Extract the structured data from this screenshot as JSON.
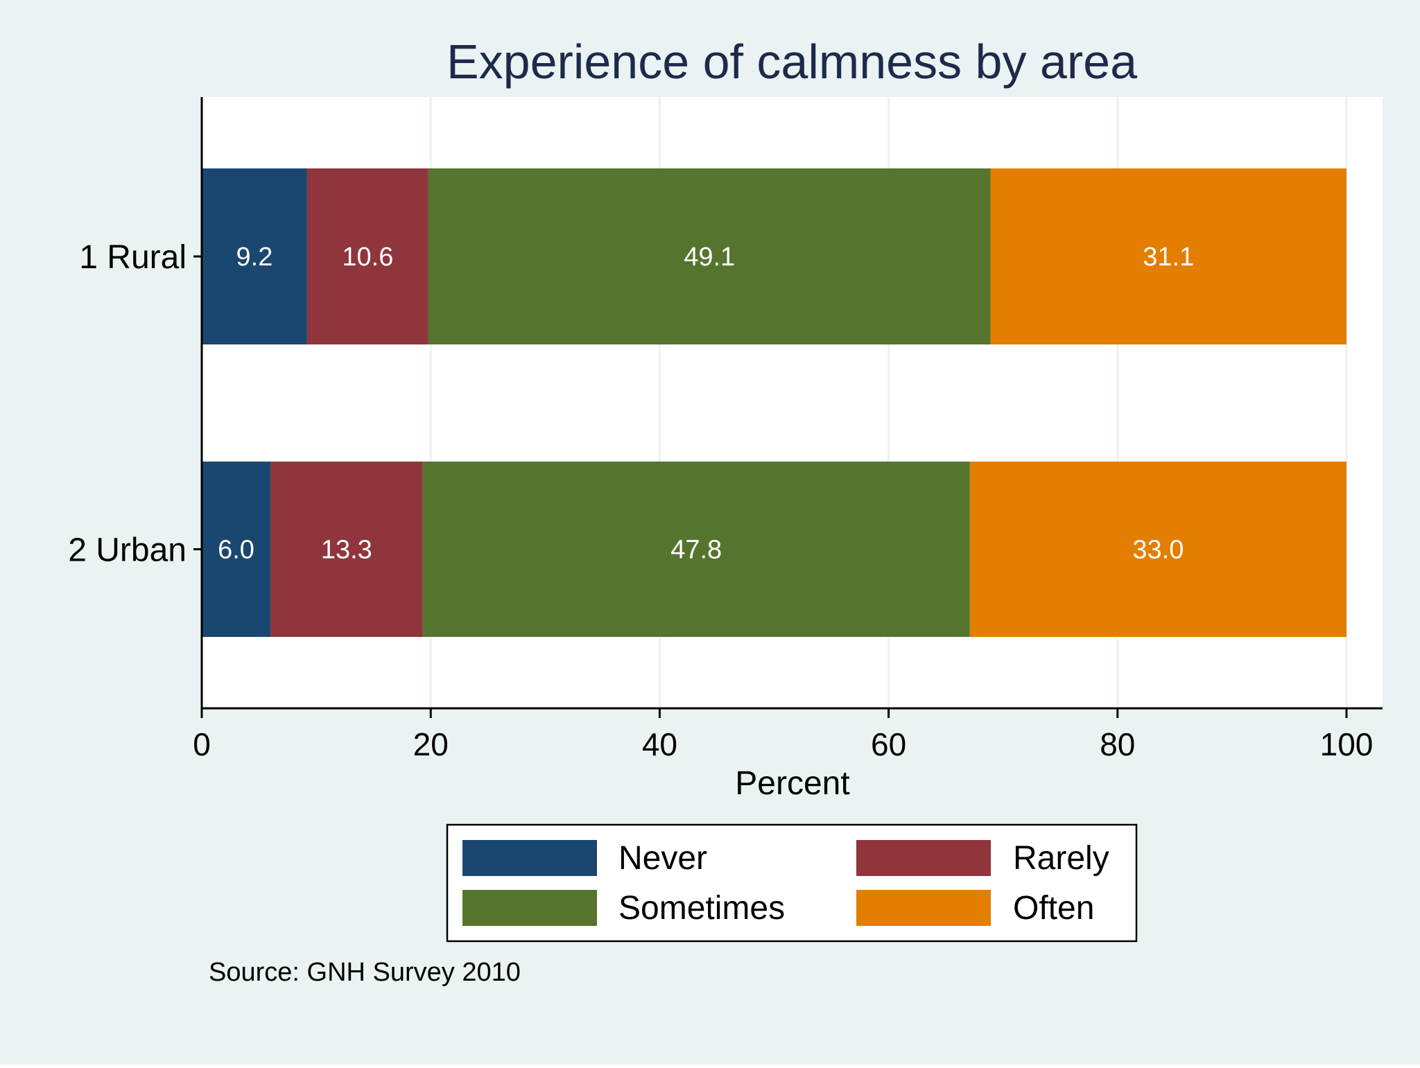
{
  "colors": {
    "background": "#eaf2f3",
    "plot_area": "#ffffff",
    "gridline": "#eaf2f3",
    "title": "#1e2a4a",
    "axis": "#000000"
  },
  "chart_data": {
    "type": "bar",
    "orientation": "horizontal",
    "stacked": true,
    "title": "Experience of calmness by area",
    "xlabel": "Percent",
    "ylabel": "",
    "xlim": [
      0,
      100
    ],
    "xticks": [
      0,
      20,
      40,
      60,
      80,
      100
    ],
    "grid": true,
    "categories": [
      "1 Rural",
      "2 Urban"
    ],
    "series": [
      {
        "name": "Never",
        "color": "#1a476f",
        "values": [
          9.2,
          6.0
        ]
      },
      {
        "name": "Rarely",
        "color": "#90353b",
        "values": [
          10.6,
          13.3
        ]
      },
      {
        "name": "Sometimes",
        "color": "#55752f",
        "values": [
          49.1,
          47.8
        ]
      },
      {
        "name": "Often",
        "color": "#e37e00",
        "values": [
          31.1,
          33.0
        ]
      }
    ],
    "value_labels": [
      [
        "9.2",
        "10.6",
        "49.1",
        "31.1"
      ],
      [
        "6.0",
        "13.3",
        "47.8",
        "33.0"
      ]
    ],
    "legend_position": "bottom",
    "note": "Source: GNH Survey 2010"
  }
}
